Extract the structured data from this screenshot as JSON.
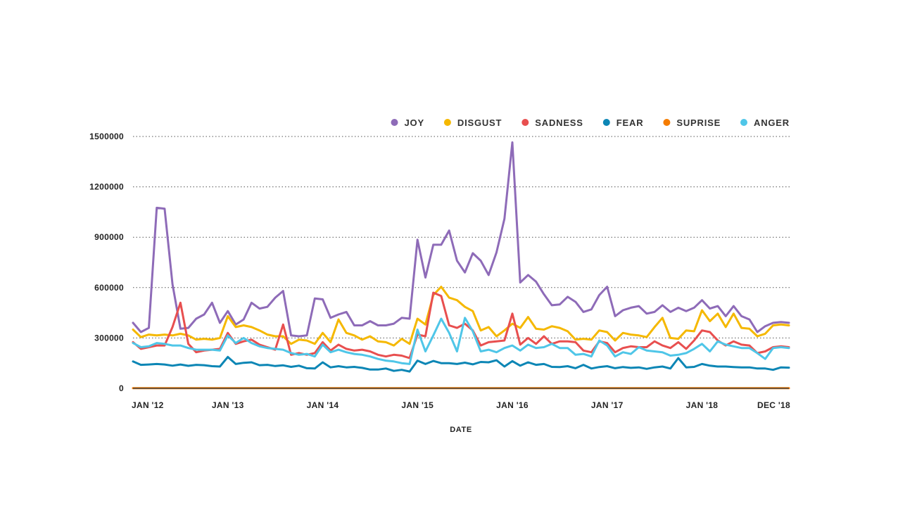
{
  "chart_data": {
    "type": "line",
    "title": "",
    "xlabel": "DATE",
    "ylabel": "",
    "ylim": [
      0,
      1500000
    ],
    "y_ticks": [
      0,
      300000,
      600000,
      900000,
      1200000,
      1500000
    ],
    "y_tick_labels": [
      "0",
      "300000",
      "600000",
      "900000",
      "1200000",
      "1500000"
    ],
    "x_ticks": [
      {
        "month_index": 0,
        "label": "JAN '12"
      },
      {
        "month_index": 12,
        "label": "JAN '13"
      },
      {
        "month_index": 24,
        "label": "JAN '14"
      },
      {
        "month_index": 36,
        "label": "JAN '15"
      },
      {
        "month_index": 48,
        "label": "JAN '16"
      },
      {
        "month_index": 60,
        "label": "JAN '17"
      },
      {
        "month_index": 72,
        "label": "JAN '18"
      },
      {
        "month_index": 83,
        "label": "DEC '18"
      }
    ],
    "x_range": [
      0,
      83
    ],
    "grid": "horizontal dotted",
    "legend_position": "top-right",
    "series": [
      {
        "name": "JOY",
        "color": "#8e6bb8",
        "values": [
          390000,
          335000,
          360000,
          1075000,
          1070000,
          620000,
          355000,
          360000,
          415000,
          440000,
          510000,
          390000,
          460000,
          380000,
          410000,
          510000,
          475000,
          485000,
          540000,
          580000,
          315000,
          310000,
          315000,
          535000,
          530000,
          420000,
          440000,
          455000,
          375000,
          375000,
          400000,
          375000,
          375000,
          385000,
          420000,
          415000,
          885000,
          660000,
          855000,
          855000,
          940000,
          760000,
          690000,
          805000,
          760000,
          675000,
          810000,
          1010000,
          1465000,
          630000,
          675000,
          635000,
          560000,
          495000,
          500000,
          545000,
          515000,
          455000,
          470000,
          555000,
          605000,
          430000,
          465000,
          480000,
          490000,
          445000,
          455000,
          495000,
          455000,
          480000,
          460000,
          480000,
          525000,
          475000,
          490000,
          430000,
          490000,
          430000,
          410000,
          335000,
          370000,
          390000,
          395000,
          390000
        ]
      },
      {
        "name": "DISGUST",
        "color": "#f5b800",
        "values": [
          350000,
          305000,
          320000,
          315000,
          320000,
          315000,
          325000,
          315000,
          290000,
          295000,
          290000,
          300000,
          430000,
          365000,
          375000,
          365000,
          345000,
          320000,
          310000,
          310000,
          265000,
          290000,
          285000,
          265000,
          330000,
          275000,
          410000,
          330000,
          315000,
          290000,
          310000,
          280000,
          275000,
          255000,
          295000,
          265000,
          415000,
          380000,
          555000,
          605000,
          540000,
          525000,
          485000,
          460000,
          345000,
          365000,
          310000,
          345000,
          385000,
          360000,
          425000,
          355000,
          350000,
          370000,
          360000,
          340000,
          290000,
          295000,
          290000,
          345000,
          335000,
          285000,
          330000,
          320000,
          315000,
          305000,
          365000,
          420000,
          300000,
          295000,
          345000,
          340000,
          465000,
          400000,
          445000,
          365000,
          445000,
          360000,
          355000,
          310000,
          325000,
          375000,
          380000,
          375000
        ]
      },
      {
        "name": "SADNESS",
        "color": "#e84f4f",
        "values": [
          275000,
          235000,
          245000,
          255000,
          255000,
          365000,
          510000,
          265000,
          215000,
          225000,
          230000,
          235000,
          330000,
          265000,
          280000,
          290000,
          260000,
          245000,
          230000,
          380000,
          200000,
          210000,
          200000,
          210000,
          275000,
          225000,
          260000,
          235000,
          225000,
          230000,
          220000,
          200000,
          190000,
          200000,
          195000,
          180000,
          320000,
          310000,
          570000,
          550000,
          375000,
          360000,
          385000,
          345000,
          255000,
          275000,
          280000,
          285000,
          445000,
          260000,
          300000,
          265000,
          310000,
          265000,
          280000,
          280000,
          275000,
          225000,
          215000,
          280000,
          270000,
          215000,
          240000,
          250000,
          245000,
          245000,
          280000,
          255000,
          240000,
          275000,
          235000,
          285000,
          345000,
          335000,
          285000,
          255000,
          280000,
          260000,
          255000,
          210000,
          220000,
          245000,
          250000,
          245000
        ]
      },
      {
        "name": "FEAR",
        "color": "#0c86b5",
        "values": [
          160000,
          140000,
          142000,
          145000,
          142000,
          135000,
          142000,
          134000,
          140000,
          138000,
          132000,
          130000,
          187000,
          145000,
          152000,
          155000,
          138000,
          140000,
          133000,
          137000,
          128000,
          135000,
          120000,
          118000,
          155000,
          125000,
          132000,
          125000,
          128000,
          122000,
          112000,
          112000,
          118000,
          104000,
          110000,
          100000,
          165000,
          145000,
          163000,
          150000,
          150000,
          145000,
          153000,
          143000,
          157000,
          155000,
          167000,
          130000,
          162000,
          135000,
          155000,
          140000,
          145000,
          128000,
          127000,
          132000,
          120000,
          140000,
          118000,
          127000,
          132000,
          120000,
          127000,
          122000,
          125000,
          116000,
          125000,
          130000,
          118000,
          180000,
          125000,
          128000,
          145000,
          135000,
          130000,
          130000,
          127000,
          125000,
          125000,
          118000,
          118000,
          110000,
          125000,
          123000
        ]
      },
      {
        "name": "SUPRISE",
        "color": "#f57c00",
        "values": [
          1000,
          1000,
          1000,
          1000,
          1000,
          1000,
          1000,
          1000,
          1000,
          1000,
          1000,
          1000,
          1000,
          1000,
          1000,
          1000,
          1000,
          1000,
          1000,
          1000,
          1000,
          1000,
          1000,
          1000,
          1000,
          1000,
          1000,
          1000,
          1000,
          1000,
          1000,
          1000,
          1000,
          1000,
          1000,
          1000,
          1000,
          1000,
          1000,
          1000,
          1000,
          1000,
          1000,
          1000,
          1000,
          1000,
          1000,
          1000,
          1000,
          1000,
          1000,
          1000,
          1000,
          1000,
          1000,
          1000,
          1000,
          1000,
          1000,
          1000,
          1000,
          1000,
          1000,
          1000,
          1000,
          1000,
          1000,
          1000,
          1000,
          1000,
          1000,
          1000,
          1000,
          1000,
          1000,
          1000,
          1000,
          1000,
          1000,
          1000,
          1000,
          1000,
          1000,
          1000
        ]
      },
      {
        "name": "ANGER",
        "color": "#4fc6e8",
        "values": [
          270000,
          245000,
          250000,
          270000,
          265000,
          255000,
          255000,
          240000,
          230000,
          230000,
          230000,
          225000,
          315000,
          270000,
          300000,
          270000,
          250000,
          240000,
          235000,
          230000,
          210000,
          200000,
          205000,
          190000,
          260000,
          215000,
          230000,
          215000,
          205000,
          200000,
          190000,
          175000,
          165000,
          160000,
          150000,
          145000,
          350000,
          220000,
          315000,
          415000,
          330000,
          220000,
          420000,
          340000,
          220000,
          230000,
          215000,
          240000,
          255000,
          225000,
          260000,
          240000,
          245000,
          265000,
          240000,
          240000,
          200000,
          205000,
          190000,
          285000,
          255000,
          190000,
          215000,
          205000,
          245000,
          225000,
          220000,
          215000,
          195000,
          200000,
          210000,
          235000,
          265000,
          220000,
          280000,
          260000,
          250000,
          240000,
          240000,
          210000,
          175000,
          240000,
          245000,
          240000
        ]
      }
    ]
  }
}
